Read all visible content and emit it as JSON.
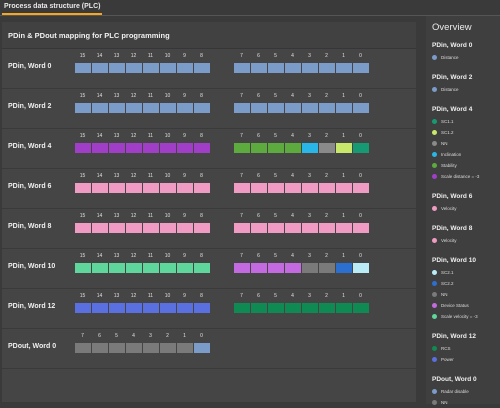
{
  "tab": {
    "label": "Process data structure (PLC)"
  },
  "panel": {
    "title": "PDin & PDout mapping for PLC programming"
  },
  "colors": {
    "blue": "#7b9cc9",
    "purple": "#a13ec8",
    "green": "#5dab3f",
    "cyan": "#29b6e8",
    "gray": "#8a8a8a",
    "lime": "#c7e86a",
    "teal": "#169a73",
    "pink": "#f09bc4",
    "mint": "#5fd69b",
    "violet": "#c46ae0",
    "dblue": "#2b6fd1",
    "lightcyan": "#b9ecf7",
    "royal": "#5a6fe0",
    "dgreen": "#0f8a52",
    "graybit": "#7a7a7a"
  },
  "rows": [
    {
      "label": "PDin, Word 0",
      "high": {
        "nums": [
          "15",
          "14",
          "13",
          "12",
          "11",
          "10",
          "9",
          "8"
        ],
        "colors": [
          "blue",
          "blue",
          "blue",
          "blue",
          "blue",
          "blue",
          "blue",
          "blue"
        ]
      },
      "low": {
        "nums": [
          "7",
          "6",
          "5",
          "4",
          "3",
          "2",
          "1",
          "0"
        ],
        "colors": [
          "blue",
          "blue",
          "blue",
          "blue",
          "blue",
          "blue",
          "blue",
          "blue"
        ]
      }
    },
    {
      "label": "PDin, Word 2",
      "high": {
        "nums": [
          "15",
          "14",
          "13",
          "12",
          "11",
          "10",
          "9",
          "8"
        ],
        "colors": [
          "blue",
          "blue",
          "blue",
          "blue",
          "blue",
          "blue",
          "blue",
          "blue"
        ]
      },
      "low": {
        "nums": [
          "7",
          "6",
          "5",
          "4",
          "3",
          "2",
          "1",
          "0"
        ],
        "colors": [
          "blue",
          "blue",
          "blue",
          "blue",
          "blue",
          "blue",
          "blue",
          "blue"
        ]
      }
    },
    {
      "label": "PDin, Word 4",
      "high": {
        "nums": [
          "15",
          "14",
          "13",
          "12",
          "11",
          "10",
          "9",
          "8"
        ],
        "colors": [
          "purple",
          "purple",
          "purple",
          "purple",
          "purple",
          "purple",
          "purple",
          "purple"
        ]
      },
      "low": {
        "nums": [
          "7",
          "6",
          "5",
          "4",
          "3",
          "2",
          "1",
          "0"
        ],
        "colors": [
          "green",
          "green",
          "green",
          "green",
          "cyan",
          "gray",
          "lime",
          "teal"
        ]
      }
    },
    {
      "label": "PDin, Word 6",
      "high": {
        "nums": [
          "15",
          "14",
          "13",
          "12",
          "11",
          "10",
          "9",
          "8"
        ],
        "colors": [
          "pink",
          "pink",
          "pink",
          "pink",
          "pink",
          "pink",
          "pink",
          "pink"
        ]
      },
      "low": {
        "nums": [
          "7",
          "6",
          "5",
          "4",
          "3",
          "2",
          "1",
          "0"
        ],
        "colors": [
          "pink",
          "pink",
          "pink",
          "pink",
          "pink",
          "pink",
          "pink",
          "pink"
        ]
      }
    },
    {
      "label": "PDin, Word 8",
      "high": {
        "nums": [
          "15",
          "14",
          "13",
          "12",
          "11",
          "10",
          "9",
          "8"
        ],
        "colors": [
          "pink",
          "pink",
          "pink",
          "pink",
          "pink",
          "pink",
          "pink",
          "pink"
        ]
      },
      "low": {
        "nums": [
          "7",
          "6",
          "5",
          "4",
          "3",
          "2",
          "1",
          "0"
        ],
        "colors": [
          "pink",
          "pink",
          "pink",
          "pink",
          "pink",
          "pink",
          "pink",
          "pink"
        ]
      }
    },
    {
      "label": "PDin, Word 10",
      "high": {
        "nums": [
          "15",
          "14",
          "13",
          "12",
          "11",
          "10",
          "9",
          "8"
        ],
        "colors": [
          "mint",
          "mint",
          "mint",
          "mint",
          "mint",
          "mint",
          "mint",
          "mint"
        ]
      },
      "low": {
        "nums": [
          "7",
          "6",
          "5",
          "4",
          "3",
          "2",
          "1",
          "0"
        ],
        "colors": [
          "violet",
          "violet",
          "violet",
          "violet",
          "graybit",
          "graybit",
          "dblue",
          "lightcyan"
        ]
      }
    },
    {
      "label": "PDin, Word 12",
      "high": {
        "nums": [
          "15",
          "14",
          "13",
          "12",
          "11",
          "10",
          "9",
          "8"
        ],
        "colors": [
          "royal",
          "royal",
          "royal",
          "royal",
          "royal",
          "royal",
          "royal",
          "royal"
        ]
      },
      "low": {
        "nums": [
          "7",
          "6",
          "5",
          "4",
          "3",
          "2",
          "1",
          "0"
        ],
        "colors": [
          "dgreen",
          "dgreen",
          "dgreen",
          "dgreen",
          "dgreen",
          "dgreen",
          "dgreen",
          "dgreen"
        ]
      }
    },
    {
      "label": "PDout, Word 0",
      "high": {
        "nums": [
          "7",
          "6",
          "5",
          "4",
          "3",
          "2",
          "1",
          "0"
        ],
        "colors": [
          "graybit",
          "graybit",
          "graybit",
          "graybit",
          "graybit",
          "graybit",
          "graybit",
          "blue"
        ]
      },
      "low": null
    }
  ],
  "overview": {
    "title": "Overview",
    "sections": [
      {
        "head": "PDin, Word 0",
        "items": [
          {
            "label": "Distance",
            "color": "blue"
          }
        ]
      },
      {
        "head": "PDin, Word 2",
        "items": [
          {
            "label": "Distance",
            "color": "blue"
          }
        ]
      },
      {
        "head": "PDin, Word 4",
        "items": [
          {
            "label": "SC1.1",
            "color": "teal"
          },
          {
            "label": "SC1.2",
            "color": "lime"
          },
          {
            "label": "NN",
            "color": "gray"
          },
          {
            "label": "Inclination",
            "color": "cyan"
          },
          {
            "label": "Stability",
            "color": "green"
          },
          {
            "label": "Scale distance = -3",
            "color": "purple"
          }
        ]
      },
      {
        "head": "PDin, Word 6",
        "items": [
          {
            "label": "Velocity",
            "color": "pink"
          }
        ]
      },
      {
        "head": "PDin, Word 8",
        "items": [
          {
            "label": "Velocity",
            "color": "pink"
          }
        ]
      },
      {
        "head": "PDin, Word 10",
        "items": [
          {
            "label": "SC2.1",
            "color": "lightcyan"
          },
          {
            "label": "SC2.2",
            "color": "dblue"
          },
          {
            "label": "NN",
            "color": "graybit"
          },
          {
            "label": "Device Status",
            "color": "violet"
          },
          {
            "label": "Scale velocity = -3",
            "color": "mint"
          }
        ]
      },
      {
        "head": "PDin, Word 12",
        "items": [
          {
            "label": "RCS",
            "color": "dgreen"
          },
          {
            "label": "Power",
            "color": "royal"
          }
        ]
      },
      {
        "head": "PDout, Word 0",
        "items": [
          {
            "label": "Radar disable",
            "color": "blue"
          },
          {
            "label": "NN",
            "color": "graybit"
          }
        ]
      }
    ]
  }
}
